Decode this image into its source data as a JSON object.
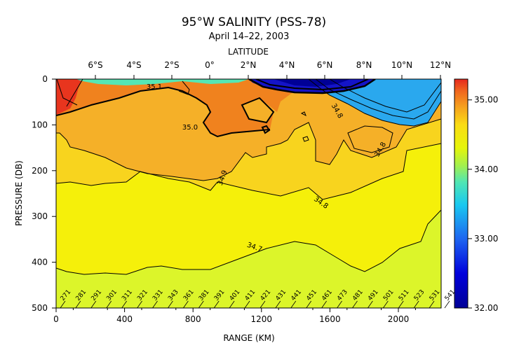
{
  "chart_data": {
    "type": "heatmap",
    "title": "95°W SALINITY (PSS-78)",
    "subtitle": "April 14–22, 2003",
    "xlabel": "RANGE (KM)",
    "ylabel": "PRESSURE (DB)",
    "top_axis_label": "LATITUDE",
    "xlim": [
      0,
      2250
    ],
    "ylim": [
      500,
      0
    ],
    "x_ticks": [
      "0",
      "400",
      "800",
      "1200",
      "1600",
      "2000"
    ],
    "y_ticks": [
      "0",
      "100",
      "200",
      "300",
      "400",
      "500"
    ],
    "lat_ticks": [
      "6°S",
      "4°S",
      "2°S",
      "0°",
      "2°N",
      "4°N",
      "6°N",
      "8°N",
      "10°N",
      "12°N"
    ],
    "colorbar": {
      "ticks": [
        "32.00",
        "33.00",
        "34.00",
        "35.00"
      ],
      "range": [
        32.0,
        35.3
      ]
    },
    "contour_labels": [
      "35.1",
      "35.0",
      "34.9",
      "34.8",
      "34.8",
      "34.8",
      "34.7"
    ],
    "stations": [
      "271",
      "281",
      "291",
      "301",
      "311",
      "321",
      "331",
      "343",
      "361",
      "381",
      "391",
      "401",
      "411",
      "421",
      "431",
      "441",
      "451",
      "461",
      "473",
      "481",
      "491",
      "501",
      "511",
      "523",
      "531",
      "541"
    ],
    "colors": {
      "salinity_max": "#e8351e",
      "salinity_35_1": "#f0821e",
      "salinity_35_0": "#f5b028",
      "salinity_34_9": "#f8d41e",
      "salinity_34_8": "#f5f00a",
      "salinity_34_7": "#dcf52a",
      "salinity_33_5": "#2aa8ee",
      "salinity_min": "#1414c8"
    }
  }
}
